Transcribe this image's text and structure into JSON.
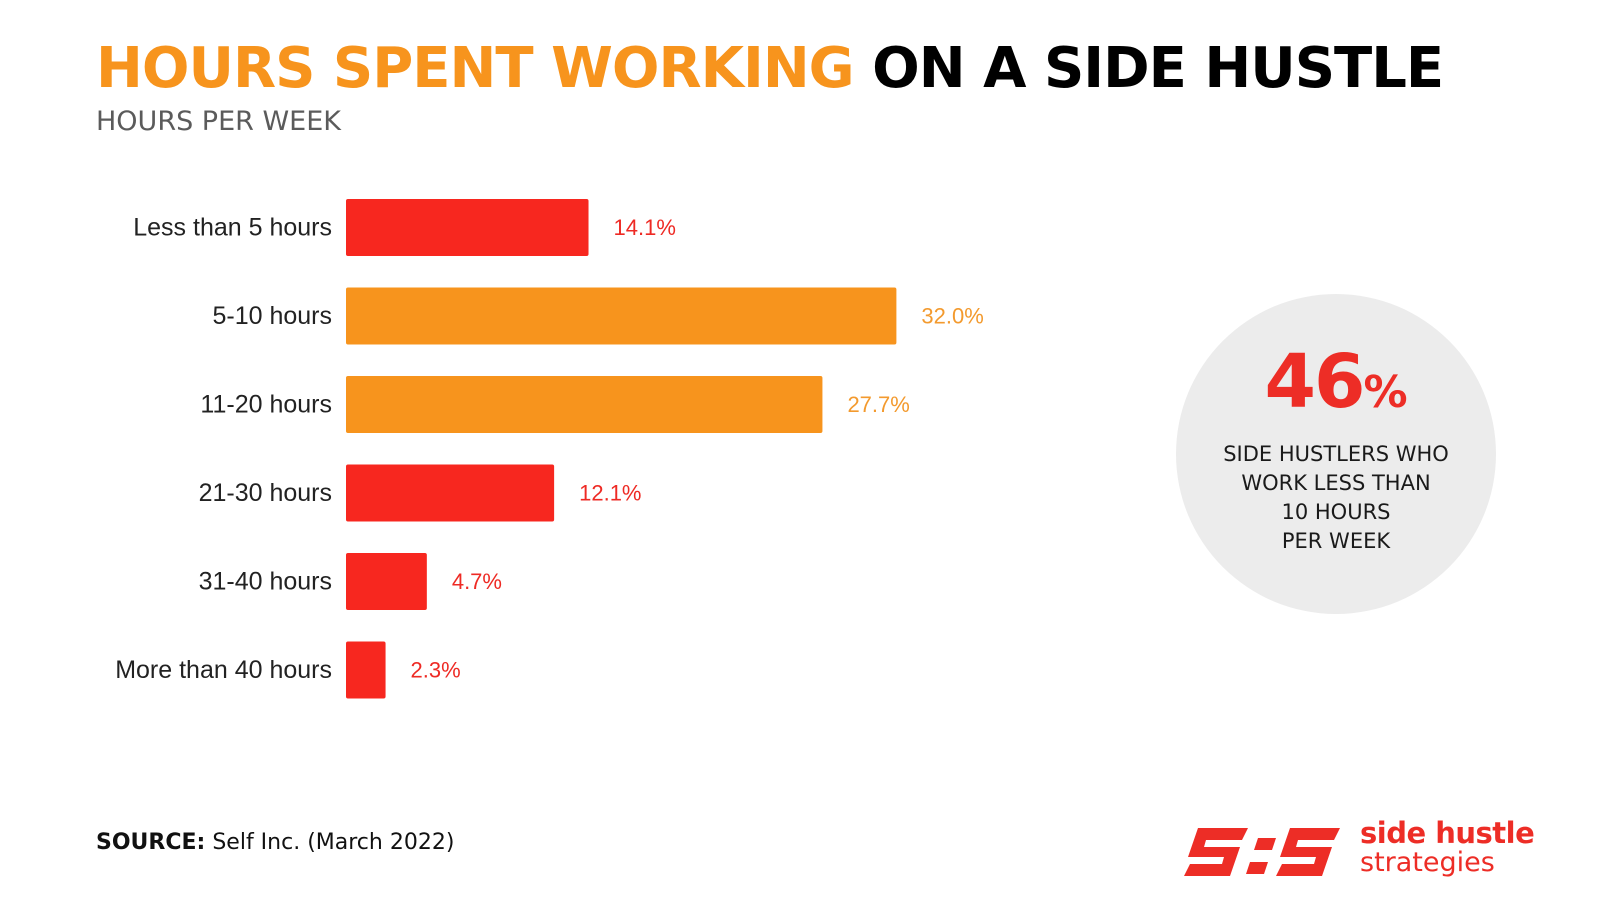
{
  "header": {
    "title_highlight": "HOURS SPENT WORKING",
    "title_rest": "ON A SIDE HUSTLE",
    "subtitle": "HOURS PER WEEK"
  },
  "chart_data": {
    "type": "bar",
    "orientation": "horizontal",
    "categories": [
      "Less than 5 hours",
      "5-10 hours",
      "11-20 hours",
      "21-30 hours",
      "31-40 hours",
      "More than 40 hours"
    ],
    "values": [
      14.1,
      32.0,
      27.7,
      12.1,
      4.7,
      2.3
    ],
    "value_labels": [
      "14.1%",
      "32.0%",
      "27.7%",
      "12.1%",
      "4.7%",
      "2.3%"
    ],
    "bar_colors": [
      "#F7271F",
      "#F7941D",
      "#F7941D",
      "#F7271F",
      "#F7271F",
      "#F7271F"
    ],
    "label_colors": [
      "#EE2A24",
      "#F39A2E",
      "#F39A2E",
      "#EE2A24",
      "#EE2A24",
      "#EE2A24"
    ],
    "xlim": [
      0,
      100
    ],
    "grid": false
  },
  "callout": {
    "value": "46",
    "unit": "%",
    "text": "SIDE HUSTLERS WHO\nWORK LESS THAN\n10 HOURS\nPER WEEK"
  },
  "footer": {
    "source_label": "SOURCE:",
    "source_text": "Self Inc. (March 2022)"
  },
  "logo": {
    "line1": "side hustle",
    "line2": "strategies",
    "color": "#ED2D26"
  }
}
